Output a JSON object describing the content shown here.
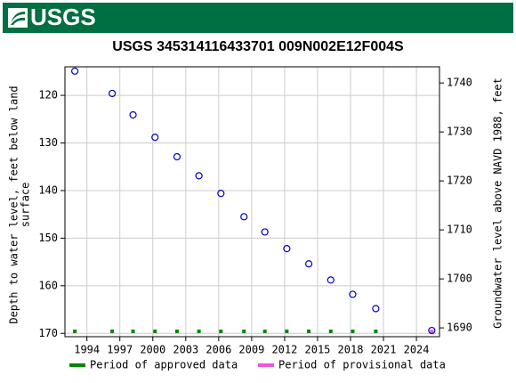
{
  "header": {
    "logo_text": "USGS"
  },
  "chart_data": {
    "type": "scatter",
    "title": "USGS 345314116433701 009N002E12F004S",
    "y_label": [
      "Depth to water level, feet below land",
      "surface"
    ],
    "y2_label": "Groundwater level above NAVD 1988, feet",
    "x": [
      1992.9,
      1996.3,
      1998.2,
      2000.2,
      2002.2,
      2004.2,
      2006.2,
      2008.3,
      2010.2,
      2012.2,
      2014.2,
      2016.2,
      2018.2,
      2020.3,
      2025.4
    ],
    "values": [
      114.9,
      119.6,
      124.1,
      128.8,
      132.9,
      136.9,
      140.6,
      145.5,
      148.7,
      152.2,
      155.4,
      158.8,
      161.8,
      164.8,
      169.4
    ],
    "marker_color": "#0000cc",
    "period": [
      0,
      0,
      0,
      0,
      0,
      0,
      0,
      0,
      0,
      0,
      0,
      0,
      0,
      0,
      1
    ],
    "series": [
      {
        "name": "Period of approved data",
        "color": "#008800"
      },
      {
        "name": "Period of provisional data",
        "color": "#ee55dd"
      }
    ],
    "xlim": [
      1992.0,
      2026.1
    ],
    "xticks": [
      1994,
      1997,
      2000,
      2003,
      2006,
      2009,
      2012,
      2015,
      2018,
      2021,
      2024
    ],
    "ylim": [
      114.0,
      170.7
    ],
    "y_inverted": true,
    "yticks": [
      120,
      130,
      140,
      150,
      160,
      170
    ],
    "y2lim": [
      1688.2,
      1743.3
    ],
    "y2ticks": [
      1690,
      1700,
      1710,
      1720,
      1730,
      1740
    ],
    "grid": true
  }
}
